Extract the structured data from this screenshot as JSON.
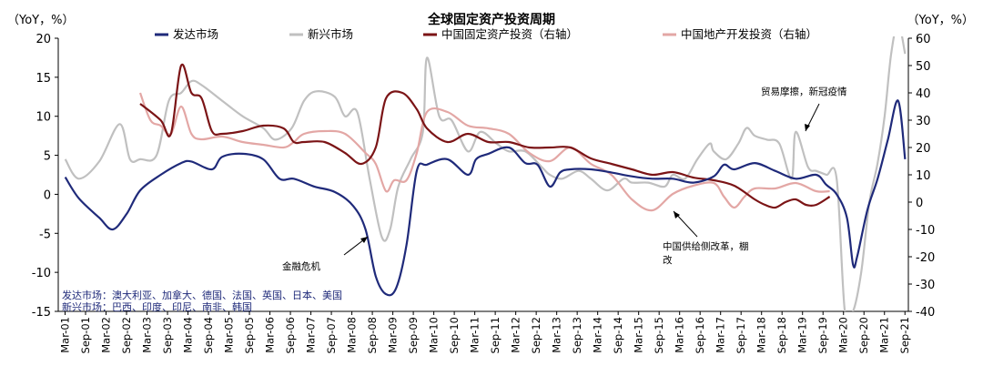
{
  "chart_data": {
    "type": "line",
    "title": "全球固定资产投资周期",
    "left_unit": "（YoY，%）",
    "right_unit": "（YoY，%）",
    "left_ylim": [
      -15,
      20
    ],
    "right_ylim": [
      -40,
      60
    ],
    "left_ticks": [
      "20",
      "15",
      "10",
      "5",
      "0",
      "-5",
      "-10",
      "-15"
    ],
    "right_ticks": [
      "60",
      "50",
      "40",
      "30",
      "20",
      "10",
      "0",
      "-10",
      "-20",
      "-30",
      "-40"
    ],
    "x_ticks": [
      "Mar-01",
      "Sep-01",
      "Mar-02",
      "Sep-02",
      "Mar-03",
      "Sep-03",
      "Mar-04",
      "Sep-04",
      "Mar-05",
      "Sep-05",
      "Mar-06",
      "Sep-06",
      "Mar-07",
      "Sep-07",
      "Mar-08",
      "Sep-08",
      "Mar-09",
      "Sep-09",
      "Mar-10",
      "Sep-10",
      "Mar-11",
      "Sep-11",
      "Mar-12",
      "Sep-12",
      "Mar-13",
      "Sep-13",
      "Mar-14",
      "Sep-14",
      "Mar-15",
      "Sep-15",
      "Mar-16",
      "Sep-16",
      "Mar-17",
      "Sep-17",
      "Mar-18",
      "Sep-18",
      "Mar-19",
      "Sep-19",
      "Mar-20",
      "Sep-20",
      "Mar-21",
      "Sep-21"
    ],
    "grid": false,
    "legend_position": "top",
    "series": [
      {
        "name": "发达市场",
        "axis": "left",
        "color": "#1f2a7a",
        "x": [
          2001.17,
          2001.5,
          2002.0,
          2002.33,
          2002.67,
          2003.0,
          2003.5,
          2004.0,
          2004.25,
          2004.75,
          2005.0,
          2005.5,
          2006.0,
          2006.4,
          2006.75,
          2007.25,
          2007.75,
          2008.2,
          2008.5,
          2008.75,
          2009.0,
          2009.25,
          2009.5,
          2009.75,
          2010.0,
          2010.5,
          2011.0,
          2011.2,
          2011.5,
          2012.0,
          2012.4,
          2012.7,
          2013.0,
          2013.25,
          2013.5,
          2014.0,
          2014.5,
          2015.0,
          2015.5,
          2016.0,
          2016.5,
          2017.0,
          2017.25,
          2017.5,
          2018.0,
          2018.5,
          2019.0,
          2019.5,
          2019.75,
          2020.0,
          2020.25,
          2020.4,
          2020.5,
          2020.75,
          2021.0,
          2021.25,
          2021.5,
          2021.67
        ],
        "values": [
          2.2,
          -0.5,
          -3.0,
          -4.5,
          -2.5,
          0.5,
          2.5,
          4.0,
          4.2,
          3.2,
          4.8,
          5.2,
          4.5,
          2.0,
          2.0,
          1.0,
          0.3,
          -1.5,
          -4.5,
          -10.5,
          -12.8,
          -12.0,
          -6.5,
          3.0,
          3.8,
          4.5,
          2.5,
          4.5,
          5.2,
          6.0,
          4.0,
          3.8,
          1.0,
          2.8,
          3.2,
          3.2,
          2.8,
          2.3,
          2.0,
          2.0,
          1.5,
          2.3,
          3.8,
          3.2,
          4.0,
          3.0,
          2.0,
          2.5,
          1.2,
          0.0,
          -3.0,
          -9.0,
          -8.0,
          -2.0,
          2.0,
          7.0,
          12.0,
          4.5
        ]
      },
      {
        "name": "新兴市场",
        "axis": "left",
        "color": "#c0c0c0",
        "x": [
          2001.17,
          2001.5,
          2002.0,
          2002.5,
          2002.75,
          2003.0,
          2003.4,
          2003.7,
          2004.0,
          2004.25,
          2004.5,
          2005.0,
          2005.5,
          2006.0,
          2006.3,
          2006.7,
          2007.0,
          2007.3,
          2007.75,
          2008.0,
          2008.3,
          2008.6,
          2008.9,
          2009.1,
          2009.3,
          2009.6,
          2009.9,
          2010.0,
          2010.3,
          2010.6,
          2011.0,
          2011.3,
          2011.7,
          2012.0,
          2012.4,
          2012.8,
          2013.0,
          2013.3,
          2013.7,
          2014.0,
          2014.4,
          2014.8,
          2015.0,
          2015.4,
          2015.8,
          2016.0,
          2016.3,
          2016.6,
          2016.9,
          2017.0,
          2017.3,
          2017.6,
          2017.8,
          2018.0,
          2018.3,
          2018.6,
          2018.9,
          2019.0,
          2019.3,
          2019.5,
          2019.75,
          2020.0,
          2020.2,
          2020.4,
          2020.6,
          2020.8,
          2021.0,
          2021.17,
          2021.33,
          2021.5,
          2021.67
        ],
        "values": [
          4.5,
          2.0,
          4.2,
          9.0,
          4.5,
          4.5,
          5.0,
          12.0,
          13.0,
          14.5,
          14.0,
          12.0,
          10.0,
          8.5,
          7.0,
          8.5,
          12.0,
          13.2,
          12.5,
          10.0,
          10.5,
          2.0,
          -5.5,
          -4.5,
          1.0,
          4.5,
          8.0,
          17.5,
          10.0,
          9.5,
          5.5,
          8.0,
          6.5,
          5.5,
          5.5,
          3.5,
          2.5,
          2.0,
          3.0,
          2.0,
          0.5,
          2.0,
          1.5,
          1.5,
          1.0,
          2.5,
          2.0,
          4.5,
          6.5,
          5.5,
          4.5,
          6.5,
          8.5,
          7.5,
          7.0,
          6.5,
          2.0,
          8.0,
          3.5,
          3.0,
          2.5,
          2.0,
          -15,
          -15,
          -10,
          -1,
          4.0,
          10.0,
          18.0,
          22.0,
          18.0
        ]
      },
      {
        "name": "中国固定资产投资（右轴）",
        "axis": "right",
        "color": "#7b1416",
        "x": [
          2003.0,
          2003.5,
          2003.75,
          2004.0,
          2004.25,
          2004.5,
          2004.75,
          2005.0,
          2005.5,
          2006.0,
          2006.5,
          2006.75,
          2007.0,
          2007.5,
          2008.0,
          2008.4,
          2008.75,
          2009.0,
          2009.4,
          2009.75,
          2010.0,
          2010.5,
          2011.0,
          2011.5,
          2012.0,
          2012.5,
          2013.0,
          2013.5,
          2014.0,
          2014.5,
          2015.0,
          2015.5,
          2016.0,
          2016.5,
          2017.0,
          2017.5,
          2018.0,
          2018.25,
          2018.5,
          2018.75,
          2019.0,
          2019.25,
          2019.5,
          2019.83
        ],
        "values": [
          36,
          30,
          25,
          50,
          40,
          38,
          26,
          25,
          26,
          28,
          27,
          22,
          22,
          22,
          18,
          14,
          20,
          38,
          40,
          34,
          27,
          22,
          25,
          22,
          22,
          20,
          20,
          20,
          16,
          14,
          12,
          10,
          11,
          9,
          8,
          6,
          1,
          -1,
          -2,
          0,
          1,
          -1,
          -1,
          2
        ]
      },
      {
        "name": "中国地产开发投资（右轴）",
        "axis": "right",
        "color": "#e3a7a5",
        "x": [
          2003.0,
          2003.25,
          2003.5,
          2003.75,
          2004.0,
          2004.25,
          2004.5,
          2005.0,
          2005.5,
          2006.0,
          2006.5,
          2006.75,
          2007.0,
          2007.5,
          2008.0,
          2008.5,
          2008.75,
          2009.0,
          2009.2,
          2009.5,
          2009.75,
          2010.0,
          2010.5,
          2011.0,
          2011.5,
          2012.0,
          2012.5,
          2013.0,
          2013.5,
          2014.0,
          2014.5,
          2015.0,
          2015.5,
          2016.0,
          2016.5,
          2017.0,
          2017.25,
          2017.5,
          2017.75,
          2018.0,
          2018.5,
          2019.0,
          2019.5,
          2019.83
        ],
        "values": [
          40,
          30,
          28,
          25,
          35,
          25,
          23,
          24,
          22,
          21,
          20,
          22,
          25,
          26,
          25,
          18,
          14,
          4,
          8,
          8,
          18,
          33,
          33,
          28,
          27,
          25,
          18,
          15,
          20,
          14,
          10,
          1,
          -3,
          3,
          6,
          7,
          2,
          -2,
          2,
          5,
          5,
          7,
          4,
          4
        ]
      }
    ],
    "annotations": [
      {
        "text": "金融危机"
      },
      {
        "text": "中国供给侧改革，棚",
        "text2": "改"
      },
      {
        "text": "贸易摩擦，新冠疫情"
      }
    ],
    "notes": [
      "发达市场：澳大利亚、加拿大、德国、法国、英国、日本、美国",
      "新兴市场：巴西、印度、印尼、南非、韩国"
    ]
  }
}
